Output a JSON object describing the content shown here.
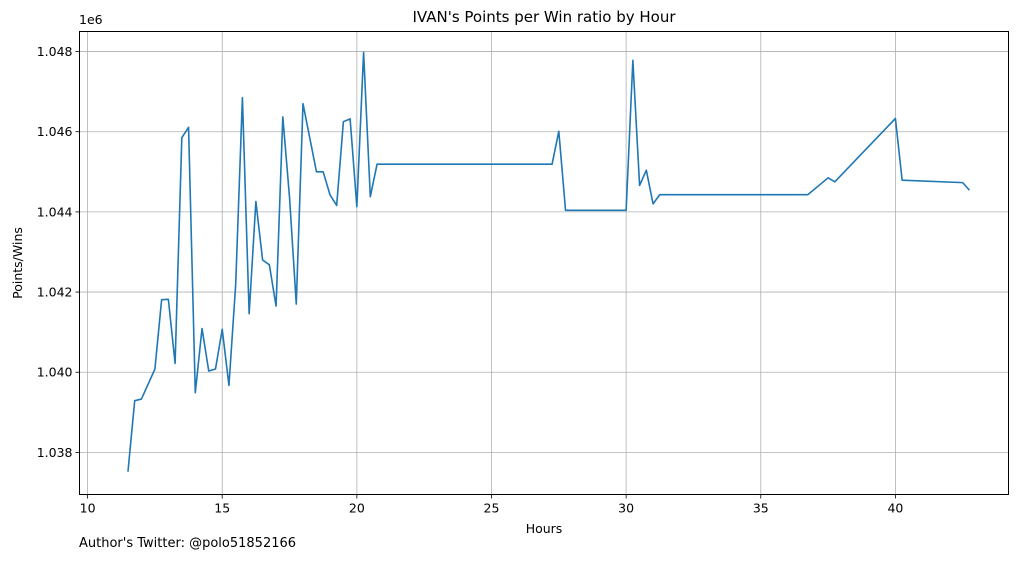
{
  "chart_data": {
    "type": "line",
    "title": "IVAN's Points per Win ratio by Hour",
    "xlabel": "Hours",
    "ylabel": "Points/Wins",
    "y_offset_label": "1e6",
    "xlim": [
      9.7,
      44.2
    ],
    "ylim": [
      1036950,
      1048500
    ],
    "x_ticks": [
      10,
      15,
      20,
      25,
      30,
      35,
      40
    ],
    "y_ticks": [
      1038000,
      1040000,
      1042000,
      1044000,
      1046000,
      1048000
    ],
    "y_tick_labels": [
      "1.038",
      "1.040",
      "1.042",
      "1.044",
      "1.046",
      "1.048"
    ],
    "grid": true,
    "line_color": "#1f77b4",
    "series": [
      {
        "x": [
          11.5,
          11.75,
          12.0,
          12.5,
          12.75,
          13.0,
          13.25,
          13.5,
          13.75,
          14.0,
          14.25,
          14.5,
          14.75,
          15.0,
          15.25,
          15.5,
          15.75,
          16.0,
          16.25,
          16.5,
          16.75,
          17.0,
          17.25,
          17.5,
          17.75,
          18.0,
          18.5,
          18.75,
          19.0,
          19.25,
          19.5,
          19.75,
          20.0,
          20.25,
          20.5,
          20.75,
          27.25,
          27.5,
          27.75,
          30.0,
          30.25,
          30.5,
          30.75,
          31.0,
          31.25,
          36.75,
          37.5,
          37.75,
          40.0,
          40.25,
          42.5,
          42.75
        ],
        "y": [
          1037520,
          1039290,
          1039330,
          1040080,
          1041810,
          1041820,
          1040220,
          1045850,
          1046110,
          1039490,
          1041090,
          1040030,
          1040080,
          1041070,
          1039670,
          1042190,
          1046850,
          1041460,
          1044260,
          1042800,
          1042680,
          1041650,
          1046370,
          1044360,
          1041700,
          1046700,
          1045000,
          1045000,
          1044430,
          1044160,
          1046250,
          1046320,
          1044130,
          1047980,
          1044380,
          1045190,
          1045190,
          1046010,
          1044040,
          1044040,
          1047780,
          1044660,
          1045040,
          1044200,
          1044430,
          1044430,
          1044850,
          1044750,
          1046330,
          1044790,
          1044730,
          1044540
        ]
      }
    ]
  },
  "footer": {
    "text": "Author's Twitter: @polo51852166"
  }
}
